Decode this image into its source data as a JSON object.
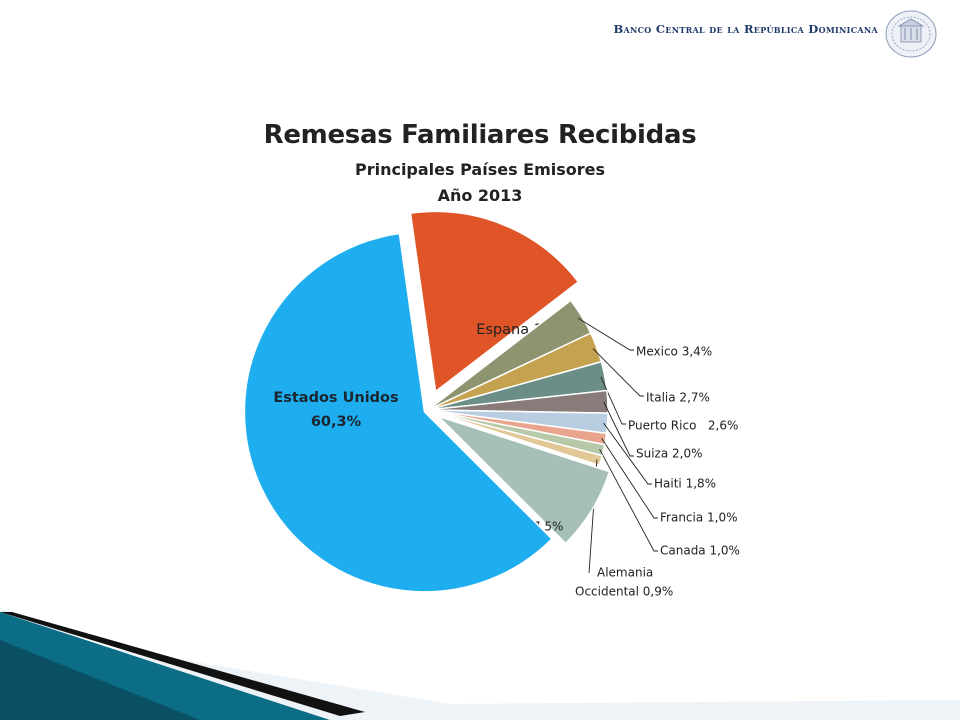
{
  "header": {
    "title": "Banco Central de la República Dominicana",
    "logo_icon": "bank-seal-icon"
  },
  "chart_data": {
    "type": "pie",
    "title": "Remesas Familiares Recibidas",
    "subtitle": "Principales Países Emisores",
    "year": "Año 2013",
    "slices": [
      {
        "label": "Espana 16,8%",
        "value": 16.8,
        "color": "#e05528"
      },
      {
        "label": "Mexico 3,4%",
        "value": 3.4,
        "color": "#8f9470"
      },
      {
        "label": "Italia 2,7%",
        "value": 2.7,
        "color": "#c4a24f"
      },
      {
        "label": "Puerto Rico   2,6%",
        "value": 2.6,
        "color": "#6b8f86"
      },
      {
        "label": "Suiza 2,0%",
        "value": 2.0,
        "color": "#8a7b7b"
      },
      {
        "label": "Haiti 1,8%",
        "value": 1.8,
        "color": "#b9cde1"
      },
      {
        "label": "Francia 1,0%",
        "value": 1.0,
        "color": "#e8a48c"
      },
      {
        "label": "Canada 1,0%",
        "value": 1.0,
        "color": "#b7c9a8"
      },
      {
        "label": "Alemania Occidental 0,9%",
        "label_lines": [
          "Alemania",
          "Occidental 0,9%"
        ],
        "value": 0.9,
        "color": "#e2c896"
      },
      {
        "label": "Otros 7,5%",
        "value": 7.5,
        "color": "#a6bfb8"
      },
      {
        "label_lines": [
          "Estados Unidos",
          "60,3%"
        ],
        "label": "Estados Unidos 60,3%",
        "value": 60.3,
        "color": "#1eaeef"
      }
    ]
  }
}
